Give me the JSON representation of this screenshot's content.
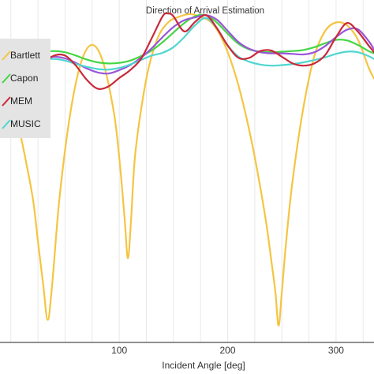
{
  "chart_data": {
    "type": "line",
    "title": "Direction of Arrival Estimation",
    "xlabel": "Incident Angle [deg]",
    "ylabel": "",
    "xlim": [
      -10,
      335
    ],
    "ylim": [
      -58,
      3
    ],
    "x_ticks": [
      100,
      200,
      300
    ],
    "grid": "vertical",
    "legend": "top-left",
    "series": [
      {
        "name": "Bartlett",
        "color": "#f5c542",
        "x": [
          -10,
          0,
          10,
          20,
          25,
          30,
          34,
          38,
          45,
          55,
          65,
          75,
          85,
          95,
          100,
          105,
          108,
          111,
          115,
          125,
          135,
          145,
          155,
          165,
          175,
          185,
          195,
          205,
          215,
          225,
          235,
          240,
          244,
          247,
          250,
          254,
          260,
          270,
          280,
          290,
          300,
          310,
          320,
          330,
          335
        ],
        "y": [
          -4,
          -13,
          -22,
          -32,
          -40,
          -48,
          -54,
          -48,
          -32,
          -17,
          -8,
          -5,
          -8,
          -17,
          -25,
          -36,
          -43,
          -36,
          -24,
          -11,
          -4,
          -1,
          0,
          0.5,
          0,
          -1,
          -4,
          -9,
          -16,
          -25,
          -36,
          -43,
          -49,
          -55,
          -49,
          -40,
          -29,
          -16,
          -7,
          -2.5,
          -1,
          -1.5,
          -4,
          -9,
          -11
        ]
      },
      {
        "name": "Capon",
        "color": "#44d644",
        "x": [
          -10,
          0,
          10,
          20,
          30,
          40,
          50,
          60,
          70,
          80,
          90,
          100,
          110,
          120,
          130,
          140,
          150,
          160,
          170,
          180,
          190,
          200,
          210,
          220,
          230,
          240,
          250,
          260,
          270,
          280,
          290,
          300,
          310,
          320,
          330,
          335
        ],
        "y": [
          -6.5,
          -7.2,
          -7.3,
          -6.8,
          -6.3,
          -6.1,
          -6.3,
          -6.9,
          -7.6,
          -8.1,
          -8.3,
          -8.2,
          -7.8,
          -7,
          -6,
          -4.5,
          -2.8,
          -1.1,
          0.1,
          0.3,
          -1,
          -3,
          -4.8,
          -5.8,
          -6.2,
          -6.3,
          -6.2,
          -6.1,
          -5.9,
          -5.4,
          -4.7,
          -4.1,
          -4.2,
          -5,
          -6.1,
          -6.5
        ]
      },
      {
        "name": "MEM",
        "color": "#c82a3a",
        "x": [
          -10,
          0,
          10,
          20,
          30,
          40,
          50,
          60,
          70,
          80,
          90,
          100,
          110,
          120,
          130,
          140,
          145,
          150,
          160,
          170,
          180,
          190,
          200,
          210,
          220,
          230,
          240,
          250,
          260,
          270,
          280,
          290,
          300,
          310,
          320,
          330,
          335
        ],
        "y": [
          -9,
          -10.3,
          -10.8,
          -10,
          -8.3,
          -6.9,
          -6.9,
          -8.7,
          -11.2,
          -12.8,
          -12.4,
          -10.9,
          -9.5,
          -7.5,
          -3.8,
          0.1,
          0.6,
          0.1,
          -2.6,
          -0.9,
          0.3,
          -2,
          -5.1,
          -7.3,
          -7.3,
          -6.1,
          -6,
          -7.1,
          -8.3,
          -8.7,
          -8.3,
          -6.8,
          -3.6,
          -1.1,
          -2.6,
          -5.1,
          -6.3
        ]
      },
      {
        "name": "MUSIC",
        "color": "#4fd6d0",
        "x": [
          -10,
          0,
          10,
          20,
          30,
          40,
          50,
          60,
          70,
          80,
          90,
          100,
          110,
          120,
          130,
          140,
          150,
          160,
          170,
          180,
          190,
          200,
          210,
          220,
          230,
          240,
          250,
          260,
          270,
          280,
          290,
          300,
          310,
          320,
          330,
          335
        ],
        "y": [
          -8.4,
          -8.7,
          -8.5,
          -8,
          -7.6,
          -7.5,
          -7.8,
          -8.4,
          -8.9,
          -9.3,
          -9.4,
          -9.1,
          -8.5,
          -7.7,
          -6.9,
          -6.4,
          -5.4,
          -3.6,
          -1.5,
          -0.2,
          -2,
          -5.1,
          -7.1,
          -8,
          -8.5,
          -8.7,
          -8.6,
          -8.4,
          -8.1,
          -7.7,
          -7.2,
          -6.6,
          -6.2,
          -6.3,
          -7,
          -7.5
        ]
      },
      {
        "name": "",
        "color": "#9a55d9",
        "x": [
          -10,
          0,
          10,
          20,
          30,
          40,
          50,
          60,
          70,
          80,
          90,
          100,
          110,
          120,
          130,
          140,
          150,
          160,
          170,
          180,
          190,
          200,
          210,
          220,
          230,
          240,
          250,
          260,
          270,
          280,
          290,
          300,
          310,
          320,
          330,
          335
        ],
        "y": [
          -8,
          -8.6,
          -8.4,
          -7.8,
          -7.3,
          -7.1,
          -7.4,
          -8.2,
          -9.2,
          -9.9,
          -10.1,
          -9.5,
          -8.6,
          -7.3,
          -5.6,
          -3.6,
          -1.8,
          -0.6,
          -0.1,
          0.3,
          -0.5,
          -2.5,
          -4.5,
          -5.7,
          -6.3,
          -6.5,
          -6.5,
          -6.6,
          -6.7,
          -6.3,
          -5.2,
          -3.6,
          -2.3,
          -2.2,
          -4.3,
          -5.8
        ]
      }
    ]
  }
}
